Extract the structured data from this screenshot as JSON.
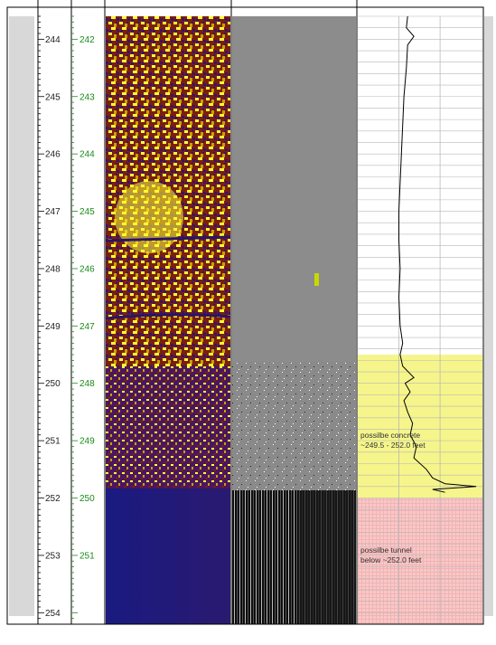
{
  "depth_track_1": {
    "labels": [
      "244",
      "245",
      "246",
      "247",
      "248",
      "249",
      "250",
      "251",
      "252",
      "253",
      "254"
    ],
    "range": [
      243.6,
      254.2
    ]
  },
  "depth_track_2": {
    "labels": [
      "242",
      "243",
      "244",
      "245",
      "246",
      "247",
      "248",
      "249",
      "250",
      "251"
    ],
    "range": [
      241.6,
      252.2
    ]
  },
  "amplitude_image": {
    "palette": [
      "#3a1466",
      "#7a1f10",
      "#c8a000",
      "#ffff33",
      "#1d1a78"
    ],
    "transition_depth_ft": 251.7
  },
  "traveltime_image": {
    "palette": [
      "#8c8c8c",
      "#111111",
      "#ffffff"
    ],
    "transition_depth_ft": 251.7
  },
  "caliper_curve": {
    "points": [
      [
        243.6,
        0.4
      ],
      [
        243.8,
        0.39
      ],
      [
        243.95,
        0.45
      ],
      [
        244.1,
        0.4
      ],
      [
        244.5,
        0.39
      ],
      [
        245.0,
        0.37
      ],
      [
        245.5,
        0.36
      ],
      [
        246.0,
        0.35
      ],
      [
        246.5,
        0.34
      ],
      [
        247.0,
        0.33
      ],
      [
        247.5,
        0.33
      ],
      [
        248.0,
        0.34
      ],
      [
        248.5,
        0.33
      ],
      [
        249.0,
        0.34
      ],
      [
        249.3,
        0.36
      ],
      [
        249.5,
        0.34
      ],
      [
        249.7,
        0.36
      ],
      [
        249.9,
        0.45
      ],
      [
        250.0,
        0.38
      ],
      [
        250.15,
        0.42
      ],
      [
        250.3,
        0.37
      ],
      [
        250.5,
        0.4
      ],
      [
        250.7,
        0.44
      ],
      [
        250.9,
        0.42
      ],
      [
        251.1,
        0.47
      ],
      [
        251.3,
        0.45
      ],
      [
        251.5,
        0.55
      ],
      [
        251.65,
        0.6
      ],
      [
        251.75,
        0.7
      ],
      [
        251.8,
        0.95
      ],
      [
        251.85,
        0.6
      ],
      [
        251.9,
        0.7
      ]
    ]
  },
  "annotations": [
    {
      "line1": "possilbe concrete",
      "line2": "~249.5 - 252.0 feet",
      "top_ft": 249.5,
      "bottom_ft": 252.0,
      "color": "#f5f58c"
    },
    {
      "line1": "possilbe tunnel",
      "line2": "below ~252.0 feet",
      "top_ft": 252.0,
      "bottom_ft": 254.2,
      "color": "#f9c8c8"
    }
  ]
}
